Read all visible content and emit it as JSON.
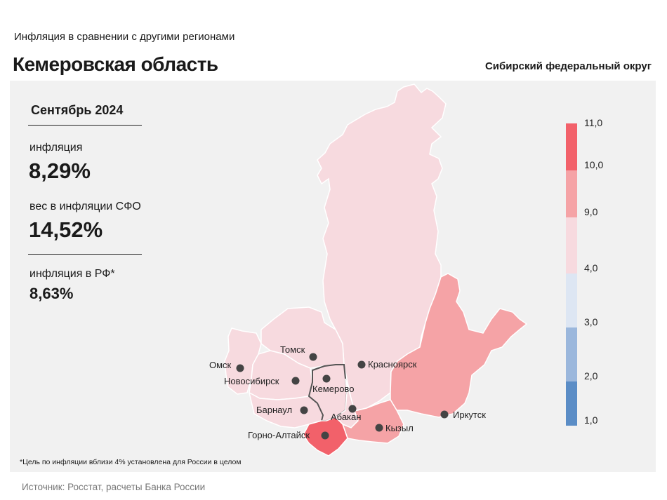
{
  "header": {
    "subtitle": "Инфляция  в сравнении  с другими  регионами",
    "title": "Кемеровская область",
    "district": "Сибирский федеральный округ"
  },
  "stats": {
    "period": "Сентябрь 2024",
    "inflation_label": "инфляция",
    "inflation_value": "8,29%",
    "weight_label": "вес в инфляции  СФО",
    "weight_value": "14,52%",
    "rf_label": "инфляция  в РФ*",
    "rf_value": "8,63%"
  },
  "cities": [
    {
      "id": "tomsk",
      "name": "Томск"
    },
    {
      "id": "omsk",
      "name": "Омск"
    },
    {
      "id": "krasnoyarsk",
      "name": "Красноярск"
    },
    {
      "id": "novosibirsk",
      "name": "Новосибирск"
    },
    {
      "id": "kemerovo",
      "name": "Кемерово"
    },
    {
      "id": "barnaul",
      "name": "Барнаул"
    },
    {
      "id": "abakan",
      "name": "Абакан"
    },
    {
      "id": "kyzyl",
      "name": "Кызыл"
    },
    {
      "id": "irkutsk",
      "name": "Иркутск"
    },
    {
      "id": "gorno",
      "name": "Горно-Алтайск"
    }
  ],
  "legend": {
    "ticks": [
      "11,0",
      "10,0",
      "9,0",
      "4,0",
      "3,0",
      "2,0",
      "1,0"
    ],
    "colors": [
      "#f2616a",
      "#f5a3a6",
      "#f7dadf",
      "#dde6f3",
      "#9bb7dc",
      "#5b8dc6"
    ]
  },
  "colors": {
    "high": "#f2616a",
    "mid": "#f5a3a6",
    "low": "#f7dadf",
    "panel": "#f1f1f1"
  },
  "footnote": "*Цель по инфляции вблизи 4% установлена для России в целом",
  "source": "Источник: Росстат, расчеты Банка России"
}
